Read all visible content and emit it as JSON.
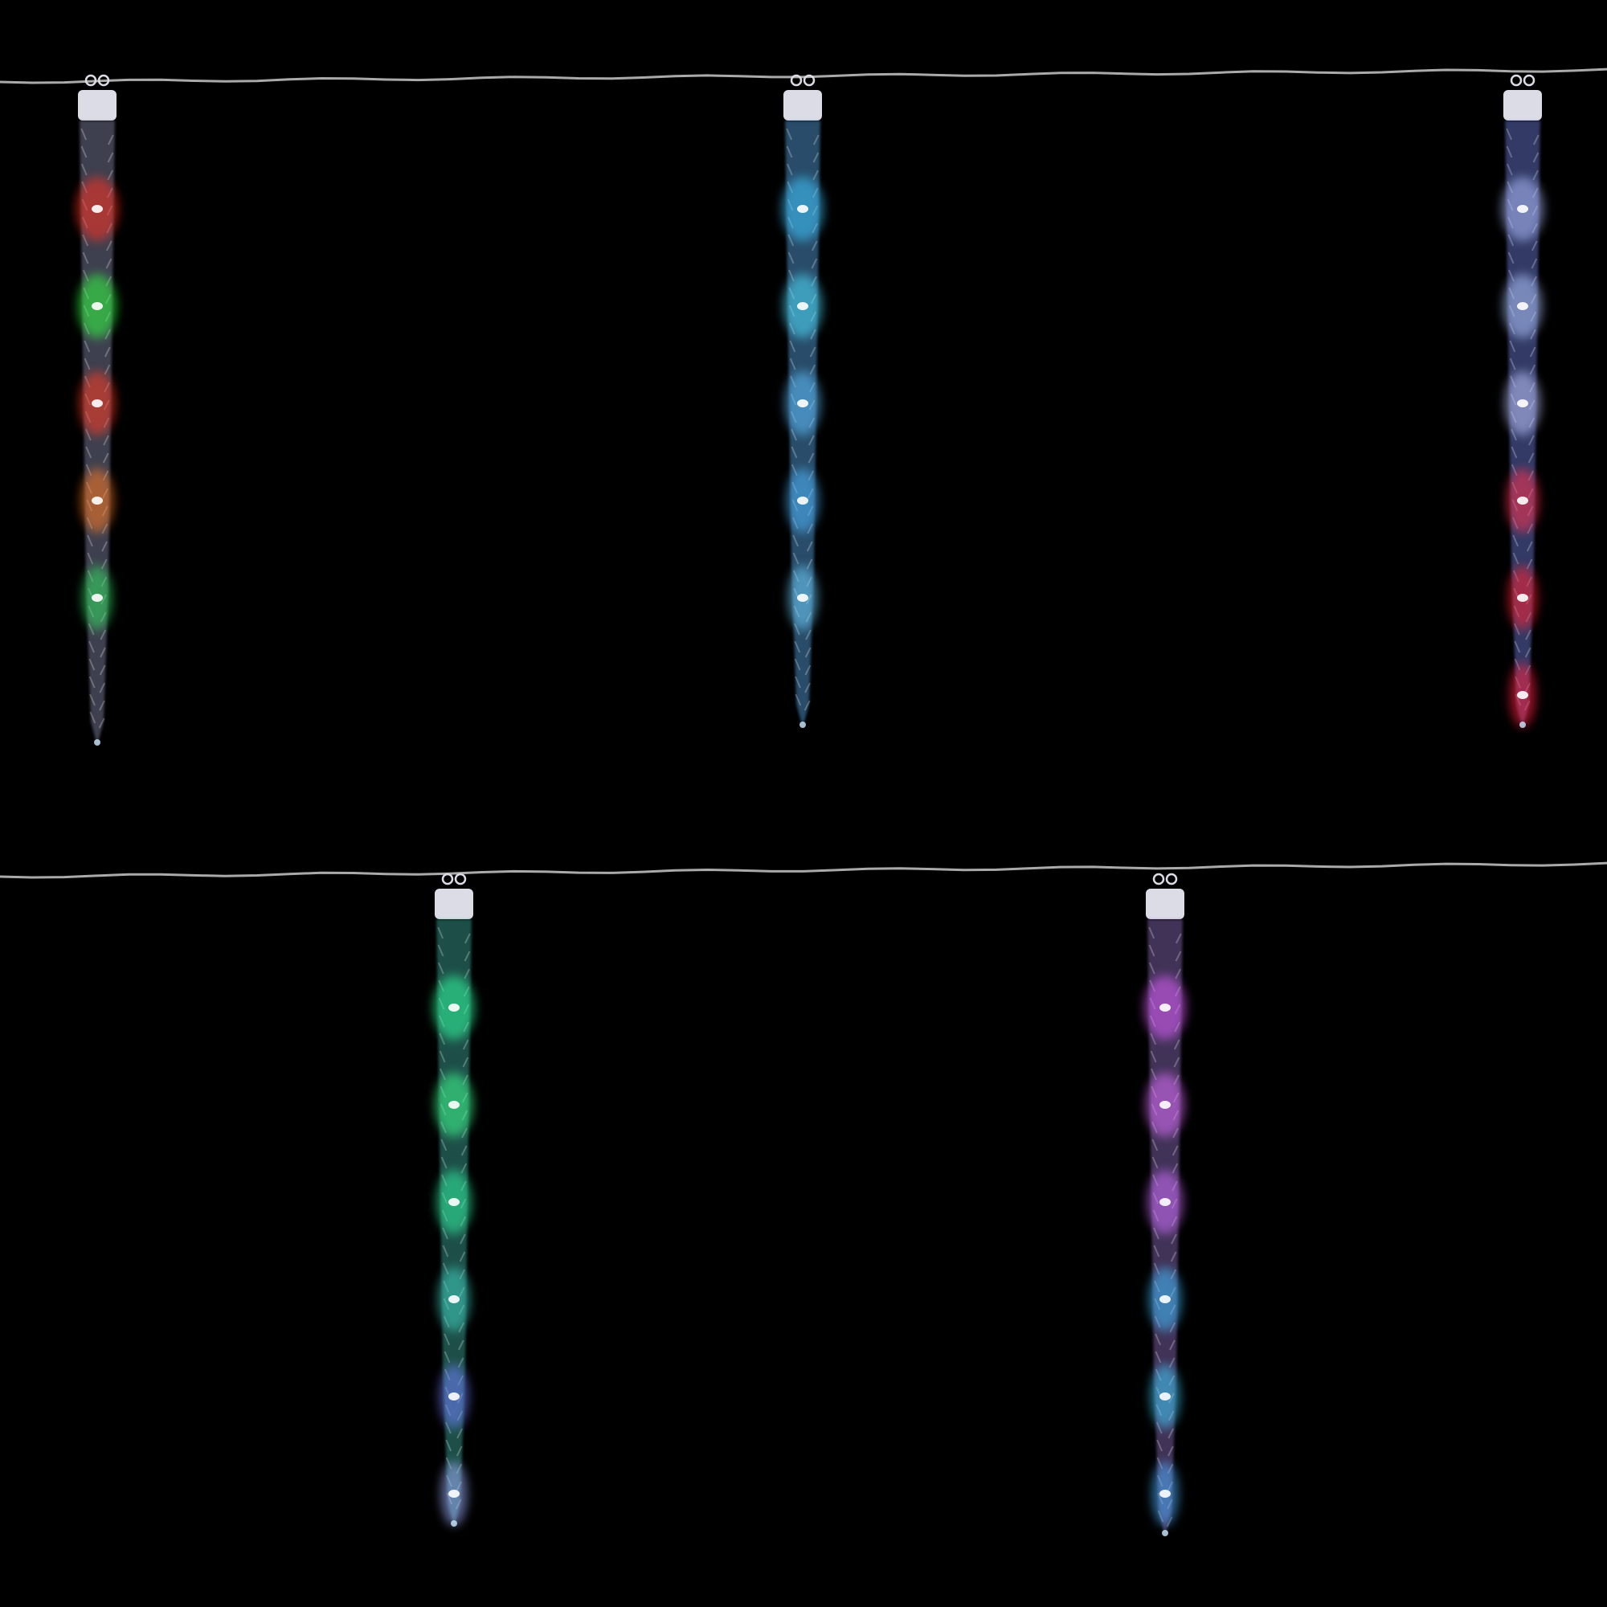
{
  "scene": {
    "background_color": "#000000",
    "wire_color": "#c8c8c8",
    "cap_color": "#dcdce6",
    "icicles": [
      {
        "tube_tint": "#8a8fb0",
        "led_colors": [
          "#ff3020",
          "#30ff40",
          "#ff3a20",
          "#ff7a20",
          "#30e060"
        ]
      },
      {
        "tube_tint": "#5aa8e8",
        "led_colors": [
          "#40c8ff",
          "#50e0ff",
          "#60c0ff",
          "#50b8ff",
          "#70d0ff"
        ]
      },
      {
        "tube_tint": "#7080e0",
        "led_colors": [
          "#b0c0ff",
          "#b0c8ff",
          "#c0c8ff",
          "#ff3050",
          "#ff2030",
          "#ff2040"
        ]
      },
      {
        "tube_tint": "#40b0a0",
        "led_colors": [
          "#30ffa0",
          "#40ff90",
          "#30f0a0",
          "#40d0c0",
          "#7080ff",
          "#a0b0ff"
        ]
      },
      {
        "tube_tint": "#9070c0",
        "led_colors": [
          "#e060ff",
          "#e070ff",
          "#d070ff",
          "#40c0ff",
          "#40d0ff",
          "#50b0ff"
        ]
      }
    ]
  }
}
